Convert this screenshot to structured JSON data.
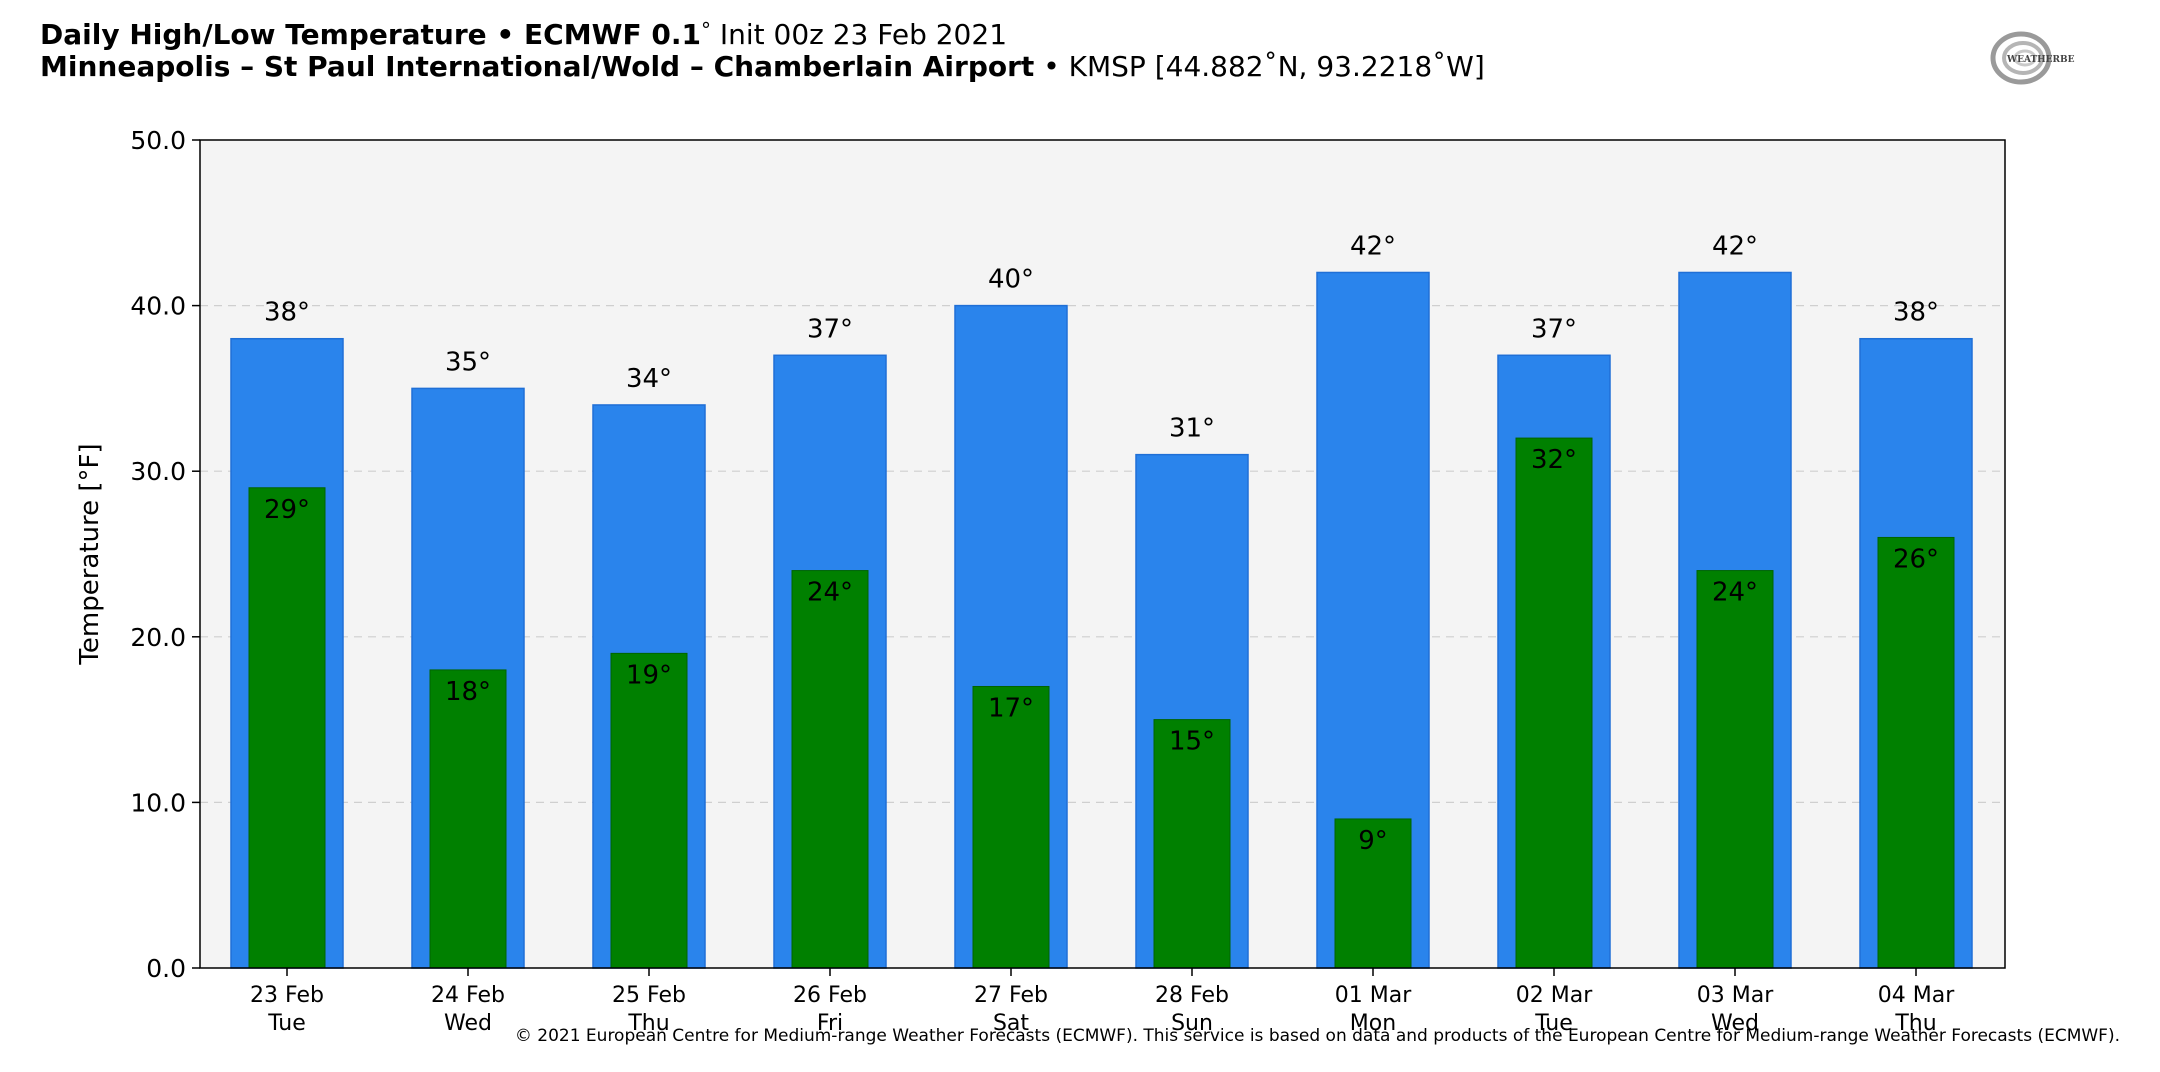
{
  "header": {
    "title_bold": "Daily High/Low Temperature • ECMWF 0.1",
    "title_deg": "°",
    "title_rest": " Init 00z 23 Feb 2021",
    "station_bold": "Minneapolis – St Paul International/Wold – Chamberlain Airport",
    "station_rest": " • KMSP [44.882˚N, 93.2218˚W]"
  },
  "logo": {
    "text": "WEATHERBELL",
    "icon": "weatherbell-swirl-logo"
  },
  "credit": "© 2021 European Centre for Medium-range Weather Forecasts (ECMWF). This service is based on data and products of the European Centre for Medium-range Weather Forecasts (ECMWF).",
  "colors": {
    "high": "#2a84ec",
    "high_edge": "#1f6fd6",
    "low": "#008000",
    "plot_bg": "#f4f4f4",
    "grid": "#cfcfcf"
  },
  "chart_data": {
    "type": "bar",
    "title": "Daily High/Low Temperature • ECMWF 0.1° Init 00z 23 Feb 2021",
    "ylabel": "Temperature [°F]",
    "xlabel": "",
    "ylim": [
      0,
      50
    ],
    "yticks": [
      0,
      10,
      20,
      30,
      40,
      50
    ],
    "ytick_labels": [
      "0.0",
      "10.0",
      "20.0",
      "30.0",
      "40.0",
      "50.0"
    ],
    "grid": "horizontal dashed",
    "categories": [
      "23 Feb",
      "24 Feb",
      "25 Feb",
      "26 Feb",
      "27 Feb",
      "28 Feb",
      "01 Mar",
      "02 Mar",
      "03 Mar",
      "04 Mar"
    ],
    "weekdays": [
      "Tue",
      "Wed",
      "Thu",
      "Fri",
      "Sat",
      "Sun",
      "Mon",
      "Tue",
      "Wed",
      "Thu"
    ],
    "series": [
      {
        "name": "",
        "values": [
          38,
          35,
          34,
          37,
          40,
          31,
          42,
          37,
          42,
          38
        ],
        "labels": [
          "38°",
          "35°",
          "34°",
          "37°",
          "40°",
          "31°",
          "42°",
          "37°",
          "42°",
          "38°"
        ]
      },
      {
        "name": "",
        "values": [
          29,
          18,
          19,
          24,
          17,
          15,
          9,
          32,
          24,
          26
        ],
        "labels": [
          "29°",
          "18°",
          "19°",
          "24°",
          "17°",
          "15°",
          "9°",
          "32°",
          "24°",
          "26°"
        ]
      }
    ]
  }
}
